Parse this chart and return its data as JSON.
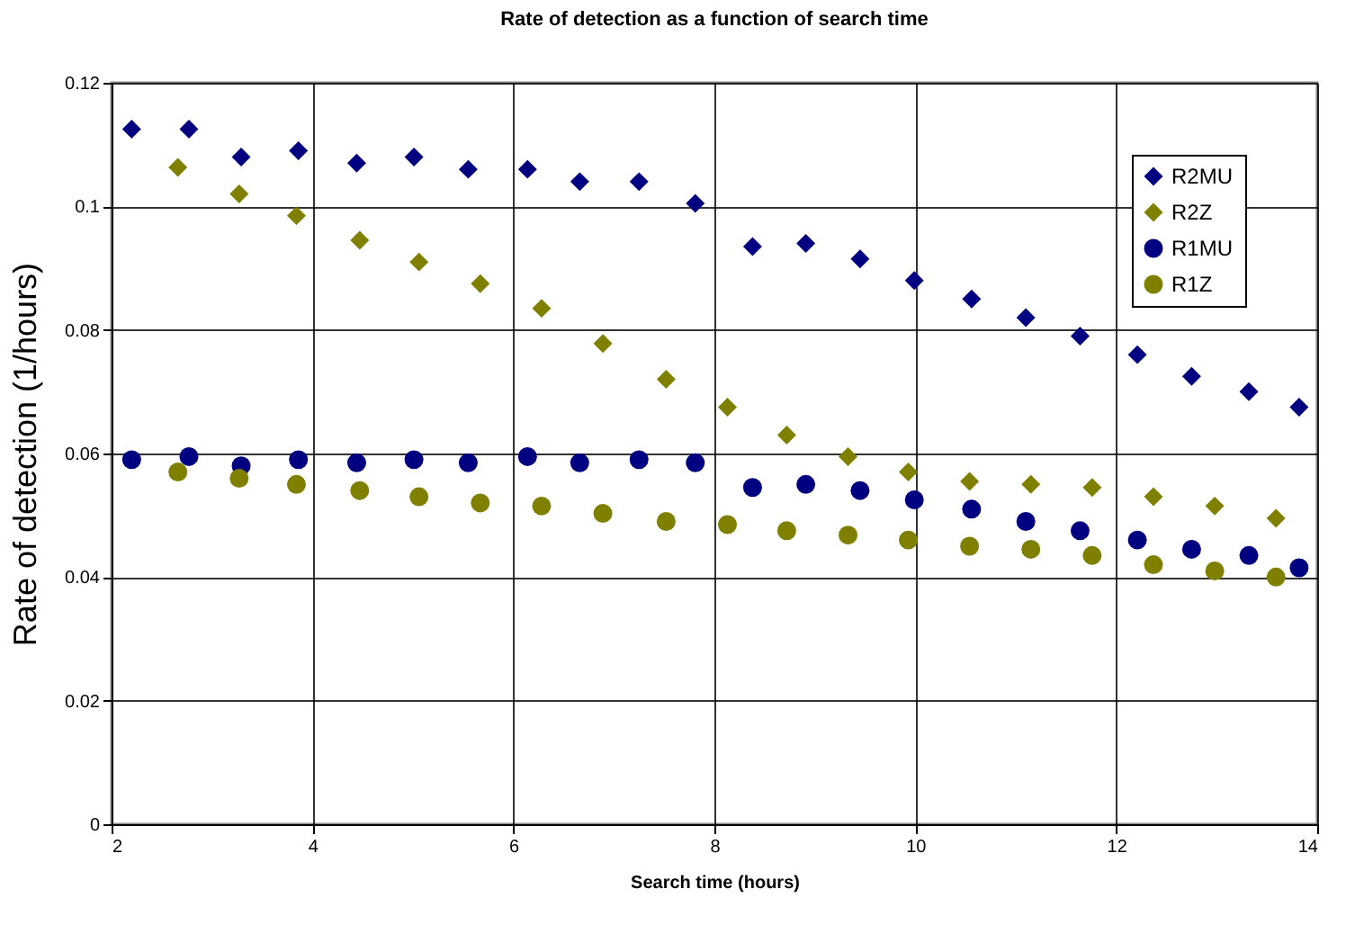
{
  "chart_data": {
    "type": "scatter",
    "title": "Rate of detection as a function of search time",
    "xlabel": "Search time (hours)",
    "ylabel": "Rate of detection (1/hours)",
    "xlim": [
      2,
      14
    ],
    "xticks": [
      2,
      4,
      6,
      8,
      10,
      12,
      14
    ],
    "ylim": [
      0,
      0.12
    ],
    "yticks": [
      0,
      0.02,
      0.04,
      0.06,
      0.08,
      0.1,
      0.12
    ],
    "grid": true,
    "legend": "top right",
    "series": [
      {
        "name": "R2MU",
        "color": "#000080",
        "marker": "diamond",
        "x": [
          2.2,
          2.77,
          3.29,
          3.86,
          4.44,
          5.01,
          5.55,
          6.14,
          6.66,
          7.25,
          7.81,
          8.38,
          8.91,
          9.45,
          9.99,
          10.56,
          11.1,
          11.64,
          12.21,
          12.75,
          13.32,
          13.82
        ],
        "values": [
          0.1125,
          0.1125,
          0.108,
          0.109,
          0.107,
          0.108,
          0.106,
          0.106,
          0.104,
          0.104,
          0.1005,
          0.0935,
          0.094,
          0.0915,
          0.088,
          0.085,
          0.082,
          0.079,
          0.076,
          0.0725,
          0.07,
          0.0675
        ]
      },
      {
        "name": "R2Z",
        "color": "#808000",
        "marker": "diamond",
        "x": [
          2.66,
          3.27,
          3.84,
          4.47,
          5.06,
          5.67,
          6.28,
          6.89,
          7.52,
          8.13,
          8.72,
          9.33,
          9.93,
          10.54,
          11.15,
          11.76,
          12.37,
          12.98,
          13.59
        ],
        "values": [
          0.1063,
          0.102,
          0.0985,
          0.0945,
          0.091,
          0.0875,
          0.0835,
          0.0778,
          0.072,
          0.0675,
          0.063,
          0.0595,
          0.057,
          0.0555,
          0.055,
          0.0545,
          0.053,
          0.0515,
          0.0495
        ]
      },
      {
        "name": "R1MU",
        "color": "#000080",
        "marker": "circle",
        "x": [
          2.2,
          2.77,
          3.29,
          3.86,
          4.44,
          5.01,
          5.55,
          6.14,
          6.66,
          7.25,
          7.81,
          8.38,
          8.91,
          9.45,
          9.99,
          10.56,
          11.1,
          11.64,
          12.21,
          12.75,
          13.32,
          13.82
        ],
        "values": [
          0.059,
          0.0595,
          0.058,
          0.059,
          0.0585,
          0.059,
          0.0585,
          0.0595,
          0.0585,
          0.059,
          0.0585,
          0.0545,
          0.055,
          0.054,
          0.0525,
          0.051,
          0.049,
          0.0475,
          0.046,
          0.0445,
          0.0435,
          0.0415
        ]
      },
      {
        "name": "R1Z",
        "color": "#808000",
        "marker": "circle",
        "x": [
          2.66,
          3.27,
          3.84,
          4.47,
          5.06,
          5.67,
          6.28,
          6.89,
          7.52,
          8.13,
          8.72,
          9.33,
          9.93,
          10.54,
          11.15,
          11.76,
          12.37,
          12.98,
          13.59
        ],
        "values": [
          0.057,
          0.056,
          0.055,
          0.054,
          0.053,
          0.052,
          0.0515,
          0.0503,
          0.049,
          0.0485,
          0.0475,
          0.0468,
          0.046,
          0.045,
          0.0445,
          0.0435,
          0.042,
          0.041,
          0.04
        ]
      }
    ]
  }
}
